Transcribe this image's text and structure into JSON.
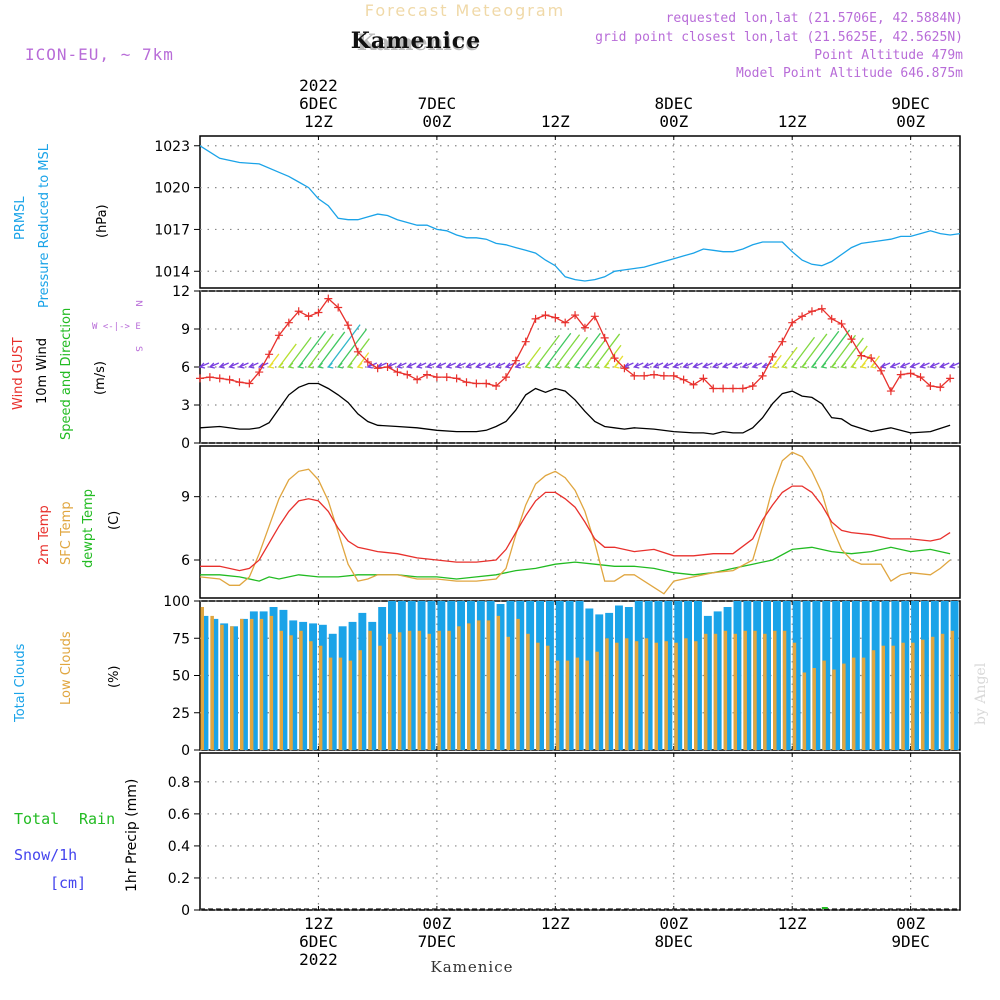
{
  "header": {
    "super_title": "Forecast Meteogram",
    "location": "Kamenice",
    "model": "ICON-EU, ~ 7km",
    "requested": "requested lon,lat (21.5706E, 42.5884N)",
    "gridpoint": "grid point closest lon,lat (21.5625E, 42.5625N)",
    "point_alt": "Point Altitude 479m",
    "model_alt": "Model Point Altitude 646.875m",
    "watermark": "by Angel",
    "footer_location": "Kamenice"
  },
  "time_axis": {
    "top_labels": [
      {
        "h": 12,
        "lines": [
          "2022",
          "6DEC",
          "12Z"
        ]
      },
      {
        "h": 24,
        "lines": [
          "7DEC",
          "00Z"
        ]
      },
      {
        "h": 36,
        "lines": [
          "12Z"
        ]
      },
      {
        "h": 48,
        "lines": [
          "8DEC",
          "00Z"
        ]
      },
      {
        "h": 60,
        "lines": [
          "12Z"
        ]
      },
      {
        "h": 72,
        "lines": [
          "9DEC",
          "00Z"
        ]
      }
    ],
    "bottom_labels": [
      {
        "h": 12,
        "lines": [
          "12Z",
          "6DEC",
          "2022"
        ]
      },
      {
        "h": 24,
        "lines": [
          "00Z",
          "7DEC"
        ]
      },
      {
        "h": 36,
        "lines": [
          "12Z"
        ]
      },
      {
        "h": 48,
        "lines": [
          "00Z",
          "8DEC"
        ]
      },
      {
        "h": 60,
        "lines": [
          "12Z"
        ]
      },
      {
        "h": 72,
        "lines": [
          "00Z",
          "9DEC"
        ]
      }
    ]
  },
  "panels": {
    "pressure": {
      "label1": "PRMSL",
      "label2": "Pressure Reduced to MSL",
      "unit": "(hPa)",
      "color1": "#1aa3e8",
      "ticks": [
        1014,
        1017,
        1020,
        1023
      ]
    },
    "wind": {
      "label_gust": "Wind GUST",
      "label_wind": "10m Wind",
      "label_dir": "Speed and Direction",
      "unit": "(m/s)",
      "compass": [
        "N",
        "W <-|-> E",
        "S"
      ],
      "gust_color": "#e8302c",
      "wind_color": "#000000",
      "dir_color": "#22bb22",
      "ticks": [
        0,
        3,
        6,
        9,
        12
      ]
    },
    "temp": {
      "label_t2m": "2m Temp",
      "label_sfc": "SFC Temp",
      "label_dew": "dewpt Temp",
      "unit": "(C)",
      "ticks": [
        6,
        9
      ]
    },
    "clouds": {
      "label_total": "Total Clouds",
      "label_low": "Low Clouds",
      "unit": "(%)",
      "ticks": [
        0,
        25,
        50,
        75,
        100
      ]
    },
    "precip": {
      "label_total": "Total",
      "label_rain": "Rain",
      "label_snow": "Snow/1h",
      "label_cm": "[cm]",
      "axis_label": "1hr Precip (mm)",
      "ticks": [
        "0",
        "0.2",
        "0.4",
        "0.6",
        "0.8"
      ]
    }
  },
  "chart_data": {
    "type": "line",
    "title": "Forecast Meteogram — Kamenice",
    "x_unit": "hours since 2022-12-06 01Z",
    "x_range": [
      0,
      77
    ],
    "series": {
      "prmsl": {
        "name": "PRMSL (hPa)",
        "color": "#1aa3e8",
        "ylim": [
          1012.8,
          1023.7
        ],
        "x": [
          0,
          2,
          4,
          6,
          8,
          9,
          10,
          11,
          12,
          13,
          14,
          15,
          16,
          17,
          18,
          19,
          20,
          21,
          22,
          23,
          24,
          25,
          26,
          27,
          28,
          29,
          30,
          31,
          32,
          33,
          34,
          35,
          36,
          37,
          38,
          39,
          40,
          41,
          42,
          43,
          44,
          45,
          46,
          47,
          48,
          49,
          50,
          51,
          52,
          53,
          54,
          55,
          56,
          57,
          58,
          59,
          60,
          61,
          62,
          63,
          64,
          65,
          66,
          67,
          68,
          69,
          70,
          71,
          72,
          73,
          74,
          75,
          76,
          77
        ],
        "values": [
          1023.0,
          1022.1,
          1021.8,
          1021.7,
          1021.1,
          1020.8,
          1020.4,
          1020.0,
          1019.2,
          1018.7,
          1017.8,
          1017.7,
          1017.7,
          1017.9,
          1018.1,
          1018.0,
          1017.7,
          1017.5,
          1017.3,
          1017.3,
          1017.0,
          1016.9,
          1016.6,
          1016.4,
          1016.4,
          1016.3,
          1016.0,
          1015.9,
          1015.7,
          1015.5,
          1015.3,
          1014.8,
          1014.4,
          1013.6,
          1013.4,
          1013.3,
          1013.4,
          1013.6,
          1014.0,
          1014.1,
          1014.2,
          1014.3,
          1014.5,
          1014.7,
          1014.9,
          1015.1,
          1015.3,
          1015.6,
          1015.5,
          1015.4,
          1015.4,
          1015.6,
          1015.9,
          1016.1,
          1016.1,
          1016.1,
          1015.4,
          1014.8,
          1014.5,
          1014.4,
          1014.7,
          1015.2,
          1015.7,
          1016.0,
          1016.1,
          1016.2,
          1016.3,
          1016.5,
          1016.5,
          1016.7,
          1016.9,
          1016.7,
          1016.6,
          1016.7
        ]
      },
      "gust": {
        "name": "Wind GUST (m/s)",
        "color": "#e8302c",
        "ylim": [
          0,
          12
        ],
        "x": [
          0,
          1,
          2,
          3,
          4,
          5,
          6,
          7,
          8,
          9,
          10,
          11,
          12,
          13,
          14,
          15,
          16,
          17,
          18,
          19,
          20,
          21,
          22,
          23,
          24,
          25,
          26,
          27,
          28,
          29,
          30,
          31,
          32,
          33,
          34,
          35,
          36,
          37,
          38,
          39,
          40,
          41,
          42,
          43,
          44,
          45,
          46,
          47,
          48,
          49,
          50,
          51,
          52,
          53,
          54,
          55,
          56,
          57,
          58,
          59,
          60,
          61,
          62,
          63,
          64,
          65,
          66,
          67,
          68,
          69,
          70,
          71,
          72,
          73,
          74,
          75,
          76
        ],
        "values": [
          5.1,
          5.2,
          5.1,
          5.0,
          4.8,
          4.7,
          5.6,
          7.0,
          8.5,
          9.5,
          10.4,
          10.0,
          10.3,
          11.4,
          10.7,
          9.3,
          7.2,
          6.4,
          5.9,
          6.0,
          5.6,
          5.4,
          5.0,
          5.4,
          5.2,
          5.2,
          5.1,
          4.8,
          4.7,
          4.7,
          4.5,
          5.2,
          6.5,
          8.0,
          9.8,
          10.1,
          9.9,
          9.5,
          10.1,
          9.1,
          10.0,
          8.3,
          6.7,
          5.9,
          5.3,
          5.3,
          5.4,
          5.3,
          5.3,
          5.0,
          4.6,
          5.1,
          4.3,
          4.3,
          4.3,
          4.3,
          4.5,
          5.3,
          6.8,
          8.0,
          9.5,
          10.0,
          10.4,
          10.6,
          9.8,
          9.4,
          8.2,
          6.9,
          6.7,
          5.7,
          4.1,
          5.4,
          5.5,
          5.2,
          4.5,
          4.4,
          5.1
        ]
      },
      "wind": {
        "name": "10m Wind (m/s)",
        "color": "#000000",
        "ylim": [
          0,
          12
        ],
        "x": [
          0,
          2,
          4,
          5,
          6,
          7,
          8,
          9,
          10,
          11,
          12,
          13,
          14,
          15,
          16,
          17,
          18,
          20,
          22,
          24,
          26,
          28,
          29,
          30,
          31,
          32,
          33,
          34,
          35,
          36,
          37,
          38,
          39,
          40,
          41,
          42,
          43,
          44,
          46,
          48,
          50,
          51,
          52,
          53,
          54,
          55,
          56,
          57,
          58,
          59,
          60,
          61,
          62,
          63,
          64,
          65,
          66,
          68,
          70,
          72,
          74,
          76
        ],
        "values": [
          1.2,
          1.3,
          1.1,
          1.1,
          1.2,
          1.6,
          2.7,
          3.8,
          4.4,
          4.7,
          4.7,
          4.3,
          3.8,
          3.2,
          2.3,
          1.7,
          1.4,
          1.3,
          1.2,
          1.0,
          0.9,
          0.9,
          1.0,
          1.3,
          1.7,
          2.6,
          3.8,
          4.3,
          4.0,
          4.3,
          4.1,
          3.4,
          2.5,
          1.7,
          1.3,
          1.2,
          1.1,
          1.2,
          1.1,
          0.9,
          0.8,
          0.8,
          0.7,
          0.9,
          0.8,
          0.8,
          1.2,
          2.0,
          3.1,
          3.9,
          4.1,
          3.7,
          3.6,
          3.1,
          2.0,
          1.9,
          1.4,
          0.9,
          1.2,
          0.8,
          0.9,
          1.4
        ]
      },
      "t2m": {
        "name": "2m Temp (C)",
        "color": "#e8302c",
        "ylim": [
          4.2,
          11.4
        ],
        "x": [
          0,
          2,
          4,
          5,
          6,
          7,
          8,
          9,
          10,
          11,
          12,
          13,
          14,
          15,
          16,
          17,
          18,
          20,
          22,
          24,
          26,
          28,
          30,
          31,
          32,
          33,
          34,
          35,
          36,
          37,
          38,
          39,
          40,
          41,
          42,
          44,
          46,
          48,
          50,
          52,
          54,
          56,
          57,
          58,
          59,
          60,
          61,
          62,
          63,
          64,
          65,
          66,
          68,
          70,
          72,
          74,
          75,
          76
        ],
        "values": [
          5.7,
          5.7,
          5.5,
          5.6,
          6.0,
          6.8,
          7.6,
          8.3,
          8.8,
          8.9,
          8.8,
          8.3,
          7.5,
          6.9,
          6.6,
          6.5,
          6.4,
          6.3,
          6.1,
          6.0,
          5.9,
          5.9,
          6.0,
          6.5,
          7.3,
          8.1,
          8.8,
          9.2,
          9.2,
          8.9,
          8.5,
          7.8,
          7.0,
          6.6,
          6.6,
          6.4,
          6.5,
          6.2,
          6.2,
          6.3,
          6.3,
          7.0,
          7.9,
          8.6,
          9.2,
          9.5,
          9.5,
          9.2,
          8.6,
          7.8,
          7.4,
          7.3,
          7.2,
          7.0,
          7.0,
          6.9,
          7.0,
          7.3
        ]
      },
      "sfc": {
        "name": "SFC Temp (C)",
        "color": "#e0a640",
        "ylim": [
          4.2,
          11.4
        ],
        "x": [
          0,
          2,
          3,
          4,
          5,
          6,
          7,
          8,
          9,
          10,
          11,
          12,
          13,
          14,
          15,
          16,
          17,
          18,
          20,
          22,
          24,
          26,
          28,
          30,
          31,
          32,
          33,
          34,
          35,
          36,
          37,
          38,
          39,
          40,
          41,
          42,
          43,
          44,
          46,
          47,
          48,
          50,
          52,
          54,
          56,
          57,
          58,
          59,
          60,
          61,
          62,
          63,
          64,
          65,
          66,
          67,
          68,
          69,
          70,
          71,
          72,
          74,
          75,
          76
        ],
        "values": [
          5.2,
          5.1,
          4.8,
          4.8,
          5.2,
          6.3,
          7.6,
          8.9,
          9.8,
          10.2,
          10.3,
          9.8,
          8.8,
          7.3,
          5.8,
          5.0,
          5.1,
          5.3,
          5.3,
          5.1,
          5.1,
          5.0,
          5.0,
          5.1,
          5.6,
          7.2,
          8.6,
          9.6,
          10.0,
          10.2,
          9.9,
          9.3,
          8.3,
          6.8,
          5.0,
          5.0,
          5.3,
          5.3,
          4.7,
          4.4,
          5.0,
          5.2,
          5.4,
          5.5,
          6.0,
          7.6,
          9.4,
          10.7,
          11.1,
          10.9,
          10.2,
          9.2,
          7.6,
          6.5,
          6.0,
          5.8,
          5.8,
          5.8,
          5.0,
          5.3,
          5.4,
          5.3,
          5.6,
          6.0
        ]
      },
      "dewpt": {
        "name": "dewpt Temp (C)",
        "color": "#22bb22",
        "ylim": [
          4.2,
          11.4
        ],
        "x": [
          0,
          2,
          4,
          6,
          7,
          8,
          10,
          12,
          14,
          16,
          18,
          20,
          22,
          24,
          26,
          28,
          30,
          32,
          34,
          36,
          38,
          40,
          42,
          44,
          46,
          48,
          50,
          52,
          54,
          56,
          58,
          60,
          62,
          64,
          66,
          68,
          70,
          72,
          74,
          76
        ],
        "values": [
          5.3,
          5.3,
          5.2,
          5.0,
          5.2,
          5.1,
          5.3,
          5.2,
          5.2,
          5.3,
          5.3,
          5.3,
          5.2,
          5.2,
          5.1,
          5.2,
          5.3,
          5.5,
          5.6,
          5.8,
          5.9,
          5.8,
          5.7,
          5.7,
          5.6,
          5.4,
          5.3,
          5.4,
          5.6,
          5.8,
          6.0,
          6.5,
          6.6,
          6.4,
          6.3,
          6.4,
          6.6,
          6.4,
          6.5,
          6.3
        ]
      },
      "total_clouds": {
        "name": "Total Clouds (%)",
        "color": "#1aa3e8",
        "ylim": [
          0,
          100
        ],
        "x_start": 0,
        "x_step": 1,
        "values": [
          90,
          88,
          85,
          83,
          88,
          93,
          93,
          96,
          94,
          87,
          86,
          85,
          84,
          78,
          83,
          86,
          92,
          86,
          96,
          100,
          100,
          100,
          100,
          100,
          100,
          100,
          100,
          100,
          100,
          100,
          98,
          100,
          100,
          100,
          100,
          100,
          100,
          100,
          100,
          95,
          91,
          92,
          97,
          96,
          100,
          100,
          100,
          100,
          100,
          100,
          100,
          90,
          93,
          96,
          100,
          100,
          100,
          100,
          100,
          100,
          100,
          100,
          100,
          100,
          100,
          100,
          100,
          100,
          100,
          100,
          100,
          100,
          100,
          100,
          100,
          100,
          100,
          100
        ]
      },
      "low_clouds": {
        "name": "Low Clouds (%)",
        "color": "#e0a640",
        "ylim": [
          0,
          100
        ],
        "x_start": 0,
        "x_step": 1,
        "values": [
          96,
          90,
          84,
          83,
          88,
          88,
          88,
          90,
          80,
          77,
          80,
          73,
          70,
          62,
          62,
          60,
          67,
          80,
          70,
          78,
          79,
          80,
          80,
          78,
          80,
          80,
          83,
          85,
          87,
          87,
          90,
          76,
          88,
          78,
          72,
          70,
          60,
          60,
          62,
          60,
          66,
          75,
          72,
          75,
          73,
          75,
          72,
          73,
          72,
          75,
          73,
          78,
          78,
          80,
          78,
          80,
          80,
          78,
          80,
          80,
          72,
          52,
          55,
          60,
          54,
          58,
          62,
          62,
          67,
          70,
          70,
          72,
          72,
          74,
          76,
          78,
          80,
          80
        ]
      },
      "precip": {
        "name": "1hr Precip (mm)",
        "color": "#22bb22",
        "ylim": [
          0,
          0.98
        ],
        "x": [
          63
        ],
        "values": [
          0.002
        ]
      }
    }
  }
}
